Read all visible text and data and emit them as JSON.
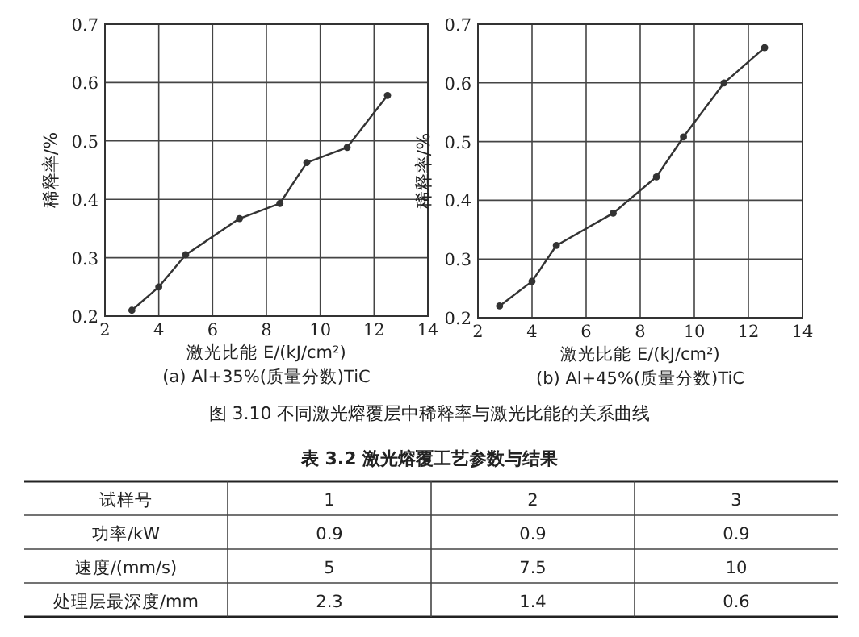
{
  "chart_data": [
    {
      "type": "line",
      "subtitle": "(a) Al+35%(质量分数)TiC",
      "xlabel": "激光比能 E/(kJ/cm²)",
      "ylabel": "稀释率/%",
      "x": [
        3,
        4,
        5,
        7,
        8.5,
        9.5,
        11,
        12.5
      ],
      "values": [
        0.21,
        0.25,
        0.305,
        0.367,
        0.393,
        0.463,
        0.489,
        0.578
      ],
      "color": "#333333",
      "marker": "circle",
      "xlim": [
        2,
        14
      ],
      "ylim": [
        0.2,
        0.7
      ],
      "xticks": [
        2,
        4,
        6,
        8,
        10,
        12,
        14
      ],
      "yticks": [
        0.2,
        0.3,
        0.4,
        0.5,
        0.6,
        0.7
      ],
      "grid": true
    },
    {
      "type": "line",
      "subtitle": "(b) Al+45%(质量分数)TiC",
      "xlabel": "激光比能 E/(kJ/cm²)",
      "ylabel": "稀释率/%",
      "x": [
        2.8,
        4,
        4.9,
        7,
        8.6,
        9.6,
        11.1,
        12.6
      ],
      "values": [
        0.22,
        0.262,
        0.323,
        0.378,
        0.44,
        0.508,
        0.6,
        0.66
      ],
      "color": "#333333",
      "marker": "circle",
      "xlim": [
        2,
        14
      ],
      "ylim": [
        0.2,
        0.7
      ],
      "xticks": [
        2,
        4,
        6,
        8,
        10,
        12,
        14
      ],
      "yticks": [
        0.2,
        0.3,
        0.4,
        0.5,
        0.6,
        0.7
      ],
      "grid": true
    },
    {
      "type": "other",
      "title": "表 3.2 激光熔覆工艺参数与结果",
      "annotations": [
        "图 3.10 不同激光熔覆层中稀释率与激光比能的关系曲线",
        "试样号",
        "1",
        "2",
        "3",
        "功率/kW",
        "0.9",
        "0.9",
        "0.9",
        "速度/(mm/s)",
        "5",
        "7.5",
        "10",
        "处理层最深度/mm",
        "2.3",
        "1.4",
        "0.6"
      ]
    }
  ]
}
